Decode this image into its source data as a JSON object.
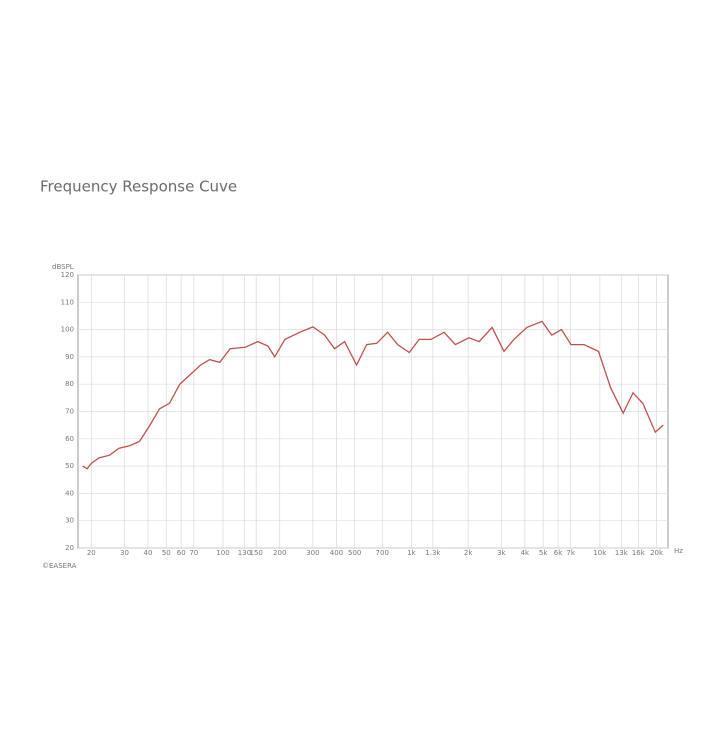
{
  "chart_data": {
    "type": "line",
    "title": "Frequency Response Cuve",
    "y_label": "dBSPL",
    "x_label": "Hz",
    "footer": "©EASERA",
    "log_x": true,
    "grid": true,
    "xlim": [
      17,
      23000
    ],
    "ylim": [
      20,
      120
    ],
    "yticks": [
      20,
      30,
      40,
      50,
      60,
      70,
      80,
      90,
      100,
      110,
      120
    ],
    "xticks": [
      20,
      30,
      40,
      50,
      60,
      70,
      100,
      130,
      150,
      200,
      300,
      400,
      500,
      700,
      {
        "value": 1000,
        "label": "1k"
      },
      {
        "value": 1300,
        "label": "1.3k"
      },
      {
        "value": 2000,
        "label": "2k"
      },
      {
        "value": 3000,
        "label": "3k"
      },
      {
        "value": 4000,
        "label": "4k"
      },
      {
        "value": 5000,
        "label": "5k"
      },
      {
        "value": 6000,
        "label": "6k"
      },
      {
        "value": 7000,
        "label": "7k"
      },
      {
        "value": 10000,
        "label": "10k"
      },
      {
        "value": 13000,
        "label": "13k"
      },
      {
        "value": 16000,
        "label": "16k"
      },
      {
        "value": 20000,
        "label": "20k"
      }
    ],
    "series": [
      {
        "color": "#c0504d",
        "x": [
          18,
          19,
          20,
          22,
          25,
          28,
          32,
          36,
          41,
          46,
          52,
          59,
          67,
          76,
          85,
          96,
          109,
          131,
          153,
          173,
          188,
          213,
          255,
          300,
          346,
          391,
          442,
          512,
          578,
          654,
          748,
          846,
          975,
          1100,
          1270,
          1490,
          1710,
          2020,
          2290,
          2680,
          3100,
          3500,
          4100,
          4930,
          5560,
          6270,
          7030,
          8250,
          9840,
          11400,
          13300,
          15000,
          16900,
          19700,
          21700
        ],
        "values": [
          50,
          49,
          51,
          53,
          54,
          56.5,
          57.5,
          59,
          65,
          71,
          73,
          80,
          83.5,
          87,
          89,
          88,
          93,
          93.5,
          95.6,
          94,
          90,
          96.4,
          99,
          101,
          98,
          93,
          95.6,
          87,
          94.5,
          95,
          99,
          94.5,
          91.6,
          96.4,
          96.4,
          99,
          94.5,
          97,
          95.6,
          100.8,
          92,
          96.4,
          100.8,
          103,
          98,
          100,
          94.5,
          94.5,
          92,
          78.7,
          69.4,
          76.8,
          73,
          62.4,
          65
        ]
      }
    ]
  }
}
